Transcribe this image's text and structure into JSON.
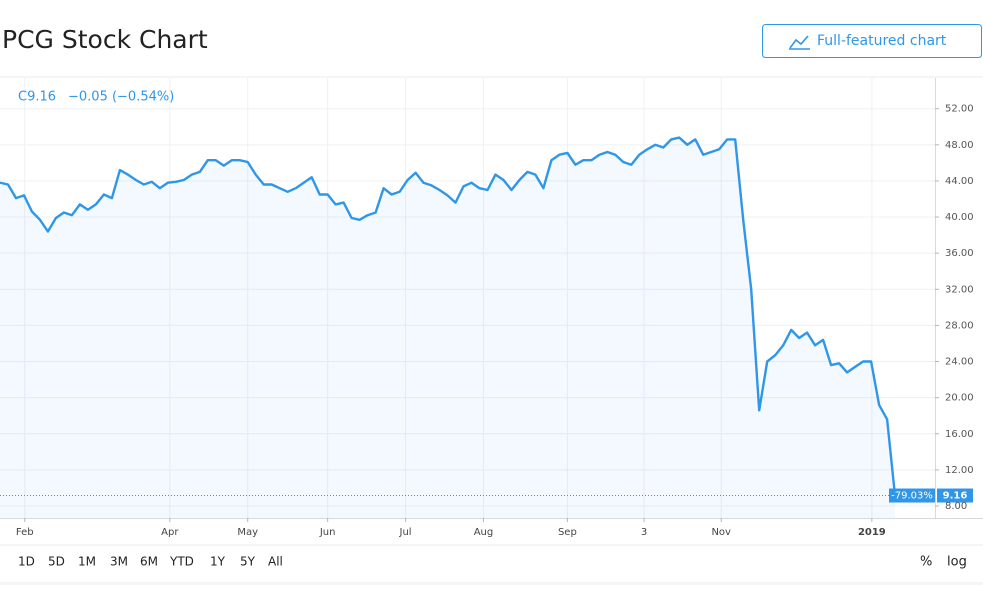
{
  "header": {
    "title": "PCG Stock Chart",
    "button": "Full-featured chart"
  },
  "toolbar": {
    "ranges": [
      "1D",
      "5D",
      "1M",
      "3M",
      "6M",
      "YTD",
      "1Y",
      "5Y",
      "All"
    ],
    "scales": [
      "%",
      "log"
    ]
  },
  "chart_data": {
    "type": "line",
    "color": "#2f96e8",
    "annotations": [
      "C9.16",
      "−0.05 (−0.54%)",
      "-79.03%",
      "9.16"
    ],
    "values": [
      43.8,
      43.6,
      42.1,
      42.4,
      40.6,
      39.7,
      38.4,
      39.9,
      40.5,
      40.2,
      41.4,
      40.8,
      41.4,
      42.5,
      42.1,
      45.2,
      44.7,
      44.1,
      43.6,
      43.9,
      43.2,
      43.8,
      43.9,
      44.1,
      44.7,
      45.0,
      46.3,
      46.3,
      45.7,
      46.3,
      46.3,
      46.1,
      44.7,
      43.6,
      43.6,
      43.2,
      42.8,
      43.2,
      43.8,
      44.4,
      42.5,
      42.5,
      41.4,
      41.6,
      39.9,
      39.7,
      40.2,
      40.5,
      43.2,
      42.5,
      42.8,
      44.1,
      44.9,
      43.8,
      43.5,
      43.0,
      42.4,
      41.6,
      43.4,
      43.8,
      43.2,
      43.0,
      44.7,
      44.1,
      43.0,
      44.1,
      45.0,
      44.7,
      43.2,
      46.3,
      46.9,
      47.1,
      45.8,
      46.3,
      46.3,
      46.9,
      47.2,
      46.9,
      46.1,
      45.8,
      46.9,
      47.5,
      48.0,
      47.7,
      48.6,
      48.8,
      48.0,
      48.6,
      46.9,
      47.2,
      47.5,
      48.6,
      48.6,
      39.7,
      32.0,
      18.6,
      24.0,
      24.7,
      25.8,
      27.5,
      26.6,
      27.2,
      25.8,
      26.4,
      23.6,
      23.8,
      22.8,
      23.4,
      24.0,
      24.0,
      19.2,
      17.6,
      9.16
    ],
    "xlim": [
      0,
      117
    ],
    "xticks": [
      {
        "value": 3.1,
        "label": "Feb"
      },
      {
        "value": 21.25,
        "label": "Apr"
      },
      {
        "value": 31,
        "label": "May"
      },
      {
        "value": 41,
        "label": "Jun"
      },
      {
        "value": 50.75,
        "label": "Jul"
      },
      {
        "value": 60.5,
        "label": "Aug"
      },
      {
        "value": 71,
        "label": "Sep"
      },
      {
        "value": 80.6,
        "label": "3"
      },
      {
        "value": 90.25,
        "label": "Nov"
      },
      {
        "value": 109.1,
        "label": "2019"
      }
    ],
    "ylim": [
      6.67,
      55.4
    ],
    "yticks": [
      {
        "value": 8,
        "label": "8.00"
      },
      {
        "value": 12,
        "label": "12.00"
      },
      {
        "value": 16,
        "label": "16.00"
      },
      {
        "value": 20,
        "label": "20.00"
      },
      {
        "value": 24,
        "label": "24.00"
      },
      {
        "value": 28,
        "label": "28.00"
      },
      {
        "value": 32,
        "label": "32.00"
      },
      {
        "value": 36,
        "label": "36.00"
      },
      {
        "value": 40,
        "label": "40.00"
      },
      {
        "value": 44,
        "label": "44.00"
      },
      {
        "value": 48,
        "label": "48.00"
      },
      {
        "value": 52,
        "label": "52.00"
      }
    ],
    "grid": true
  }
}
